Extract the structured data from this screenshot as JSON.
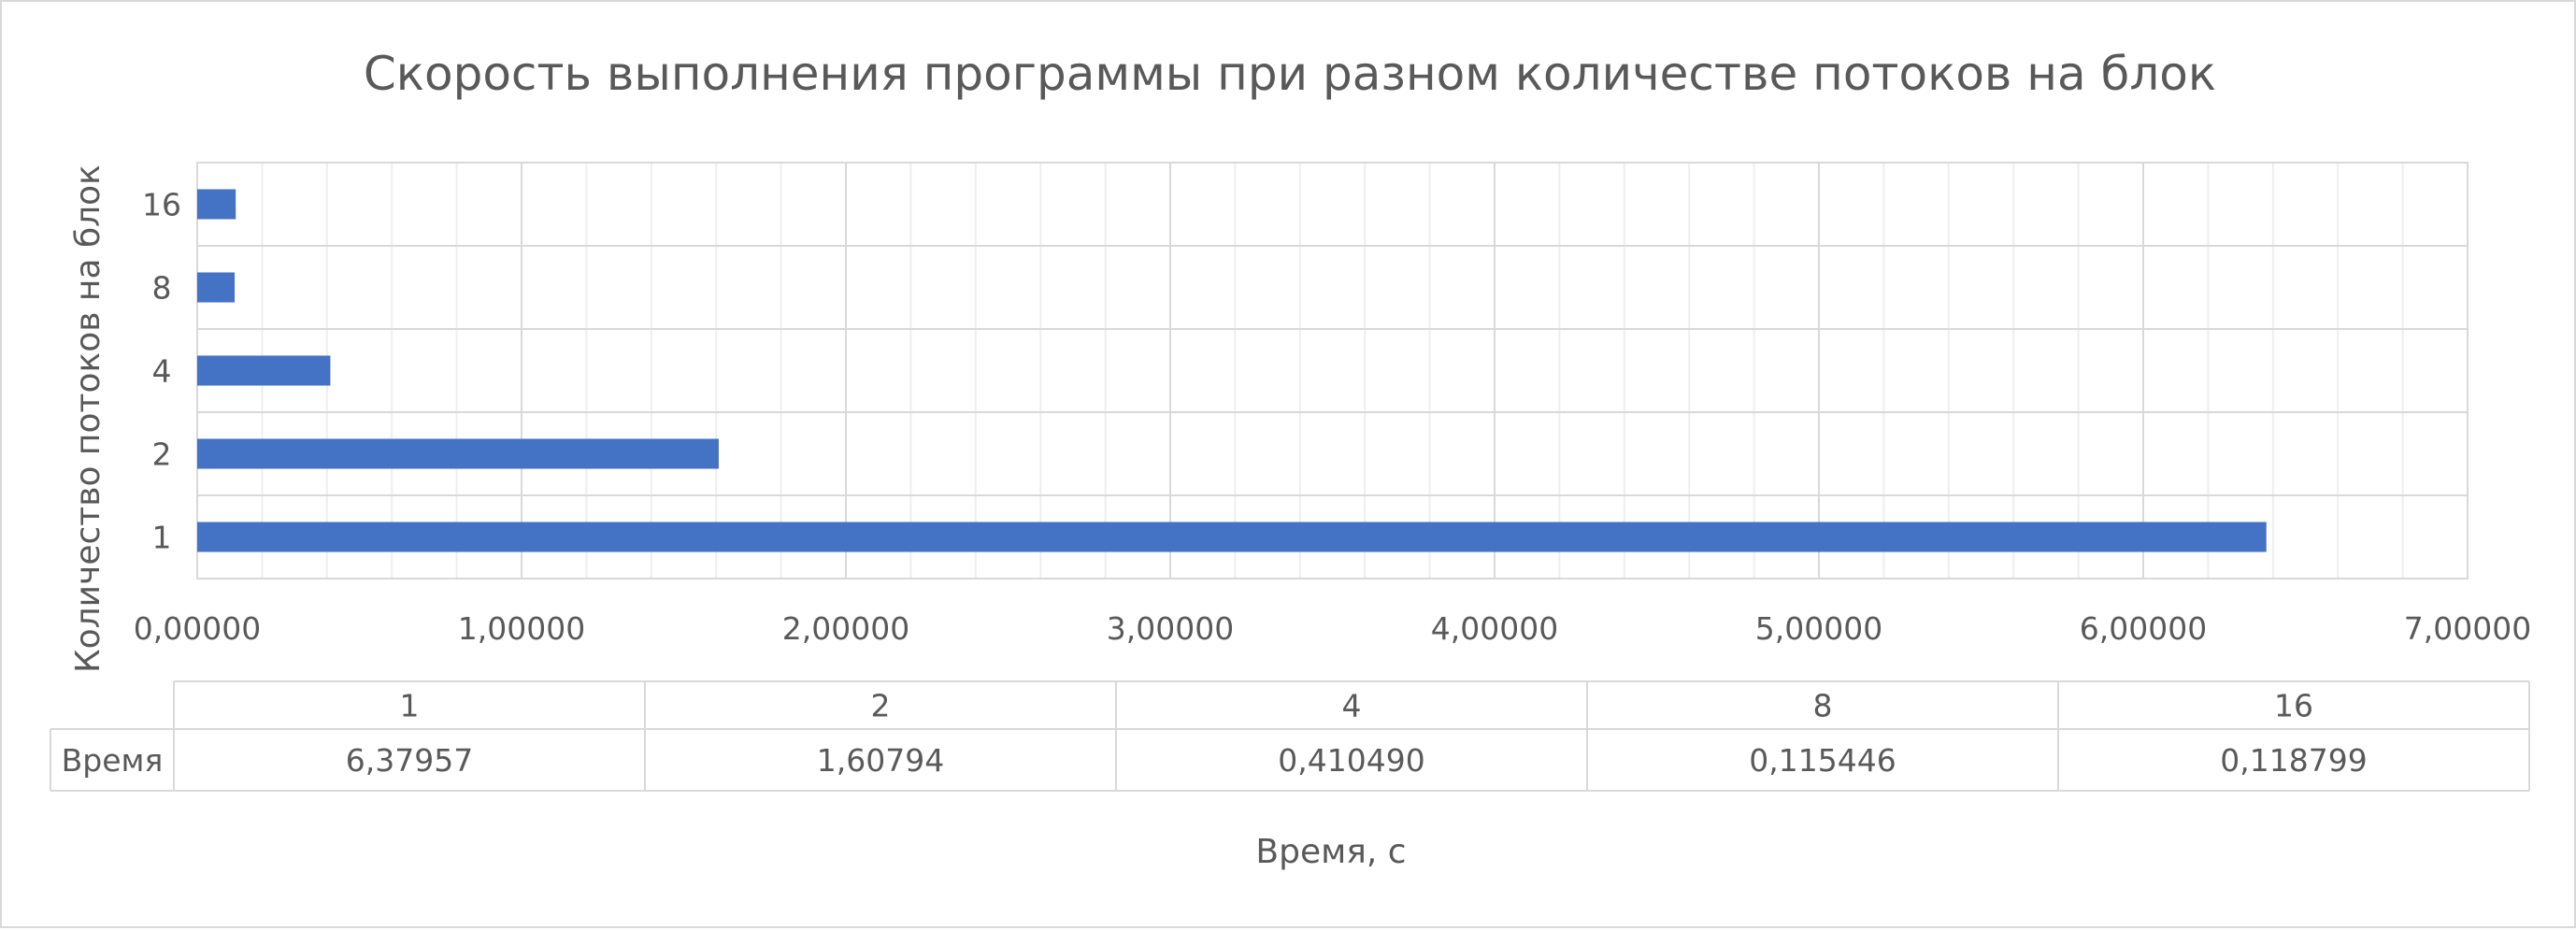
{
  "chart_data": {
    "type": "bar",
    "orientation": "horizontal",
    "title": "Скорость выполнения программы при разном количестве потоков на блок",
    "xlabel": "Время, с",
    "ylabel": "Количество потоков на блок",
    "categories": [
      "1",
      "2",
      "4",
      "8",
      "16"
    ],
    "series": [
      {
        "name": "Время",
        "values": [
          6.37957,
          1.60794,
          0.41049,
          0.115446,
          0.118799
        ],
        "value_labels": [
          "6,37957",
          "1,60794",
          "0,410490",
          "0,115446",
          "0,118799"
        ],
        "color": "#4472c4"
      }
    ],
    "xlim": [
      0,
      7
    ],
    "x_ticks": [
      0,
      1,
      2,
      3,
      4,
      5,
      6,
      7
    ],
    "x_tick_labels": [
      "0,00000",
      "1,00000",
      "2,00000",
      "3,00000",
      "4,00000",
      "5,00000",
      "6,00000",
      "7,00000"
    ],
    "x_minor_step": 0.2,
    "grid": true,
    "data_table": true,
    "legend": "none"
  },
  "colors": {
    "bar": "#4472c4",
    "grid_major": "#d9d9d9",
    "grid_minor": "#eeeeee",
    "text": "#595959",
    "table_border": "#d9d9d9"
  }
}
